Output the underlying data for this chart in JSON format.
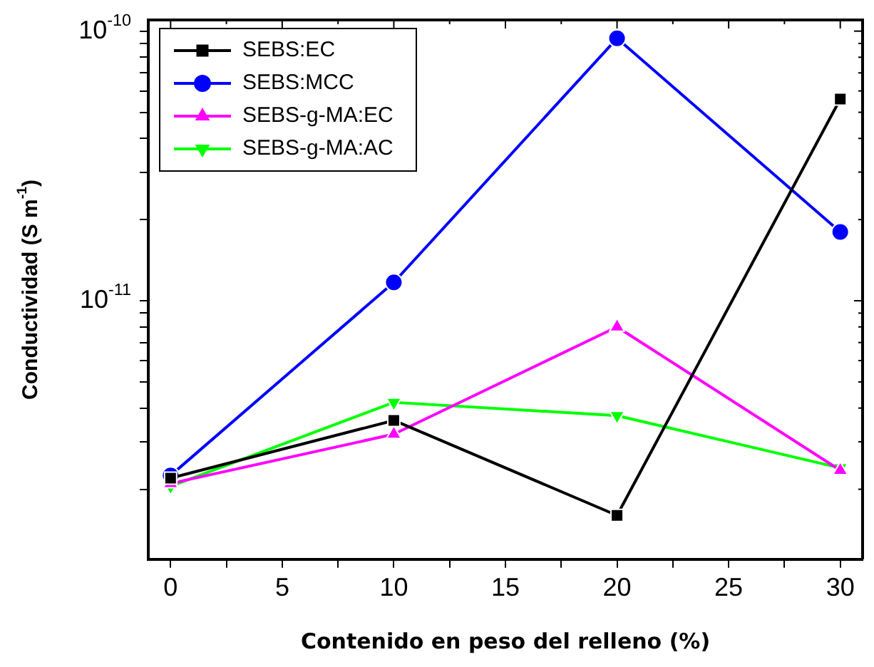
{
  "chart_data": {
    "type": "line",
    "xlabel": "Contenido en peso del relleno (%)",
    "ylabel": "Conductividad (S m$^{-1}$)",
    "x": [
      0,
      10,
      20,
      30
    ],
    "series": [
      {
        "name": "SEBS:EC",
        "color": "#000000",
        "marker": "square",
        "values": [
          2.2e-12,
          3.6e-12,
          1.6e-12,
          5.6e-11
        ]
      },
      {
        "name": "SEBS:MCC",
        "color": "#0000ff",
        "marker": "circle",
        "values": [
          2.25e-12,
          1.17e-11,
          9.4e-11,
          1.8e-11
        ]
      },
      {
        "name": "SEBS-g-MA:EC",
        "color": "#ff00ff",
        "marker": "triangle",
        "values": [
          2.1e-12,
          3.2e-12,
          8e-12,
          2.35e-12
        ]
      },
      {
        "name": "SEBS-g-MA:AC",
        "color": "#00ff00",
        "marker": "triangle-down",
        "values": [
          2.05e-12,
          4.2e-12,
          3.75e-12,
          2.4e-12
        ]
      }
    ],
    "log": "y",
    "xlim": [
      -1,
      31
    ],
    "ylim": [
      1.1e-12,
      1.1e-10
    ],
    "xticks": [
      0,
      {
        "value": 2.5,
        "label": null
      },
      5,
      {
        "value": 7.5,
        "label": null
      },
      10,
      {
        "value": 12.5,
        "label": null
      },
      15,
      {
        "value": 17.5,
        "label": null
      },
      20,
      {
        "value": 22.5,
        "label": null
      },
      25,
      {
        "value": 27.5,
        "label": null
      },
      30
    ],
    "yticks": [
      {
        "value": 2e-12,
        "label": null
      },
      {
        "value": 3e-12,
        "label": null
      },
      {
        "value": 4e-12,
        "label": null
      },
      {
        "value": 5e-12,
        "label": null
      },
      {
        "value": 6e-12,
        "label": null
      },
      {
        "value": 7e-12,
        "label": null
      },
      {
        "value": 8e-12,
        "label": null
      },
      {
        "value": 9e-12,
        "label": null
      },
      {
        "value": 1e-11,
        "label": "10$^{-11}$"
      },
      {
        "value": 2e-11,
        "label": null
      },
      {
        "value": 3e-11,
        "label": null
      },
      {
        "value": 4e-11,
        "label": null
      },
      {
        "value": 5e-11,
        "label": null
      },
      {
        "value": 6e-11,
        "label": null
      },
      {
        "value": 7e-11,
        "label": null
      },
      {
        "value": 8e-11,
        "label": null
      },
      {
        "value": 9e-11,
        "label": null
      },
      {
        "value": 1e-10,
        "label": "10$^{-10}$"
      }
    ],
    "grid": false,
    "legend": "top left",
    "line_style": "solid"
  }
}
